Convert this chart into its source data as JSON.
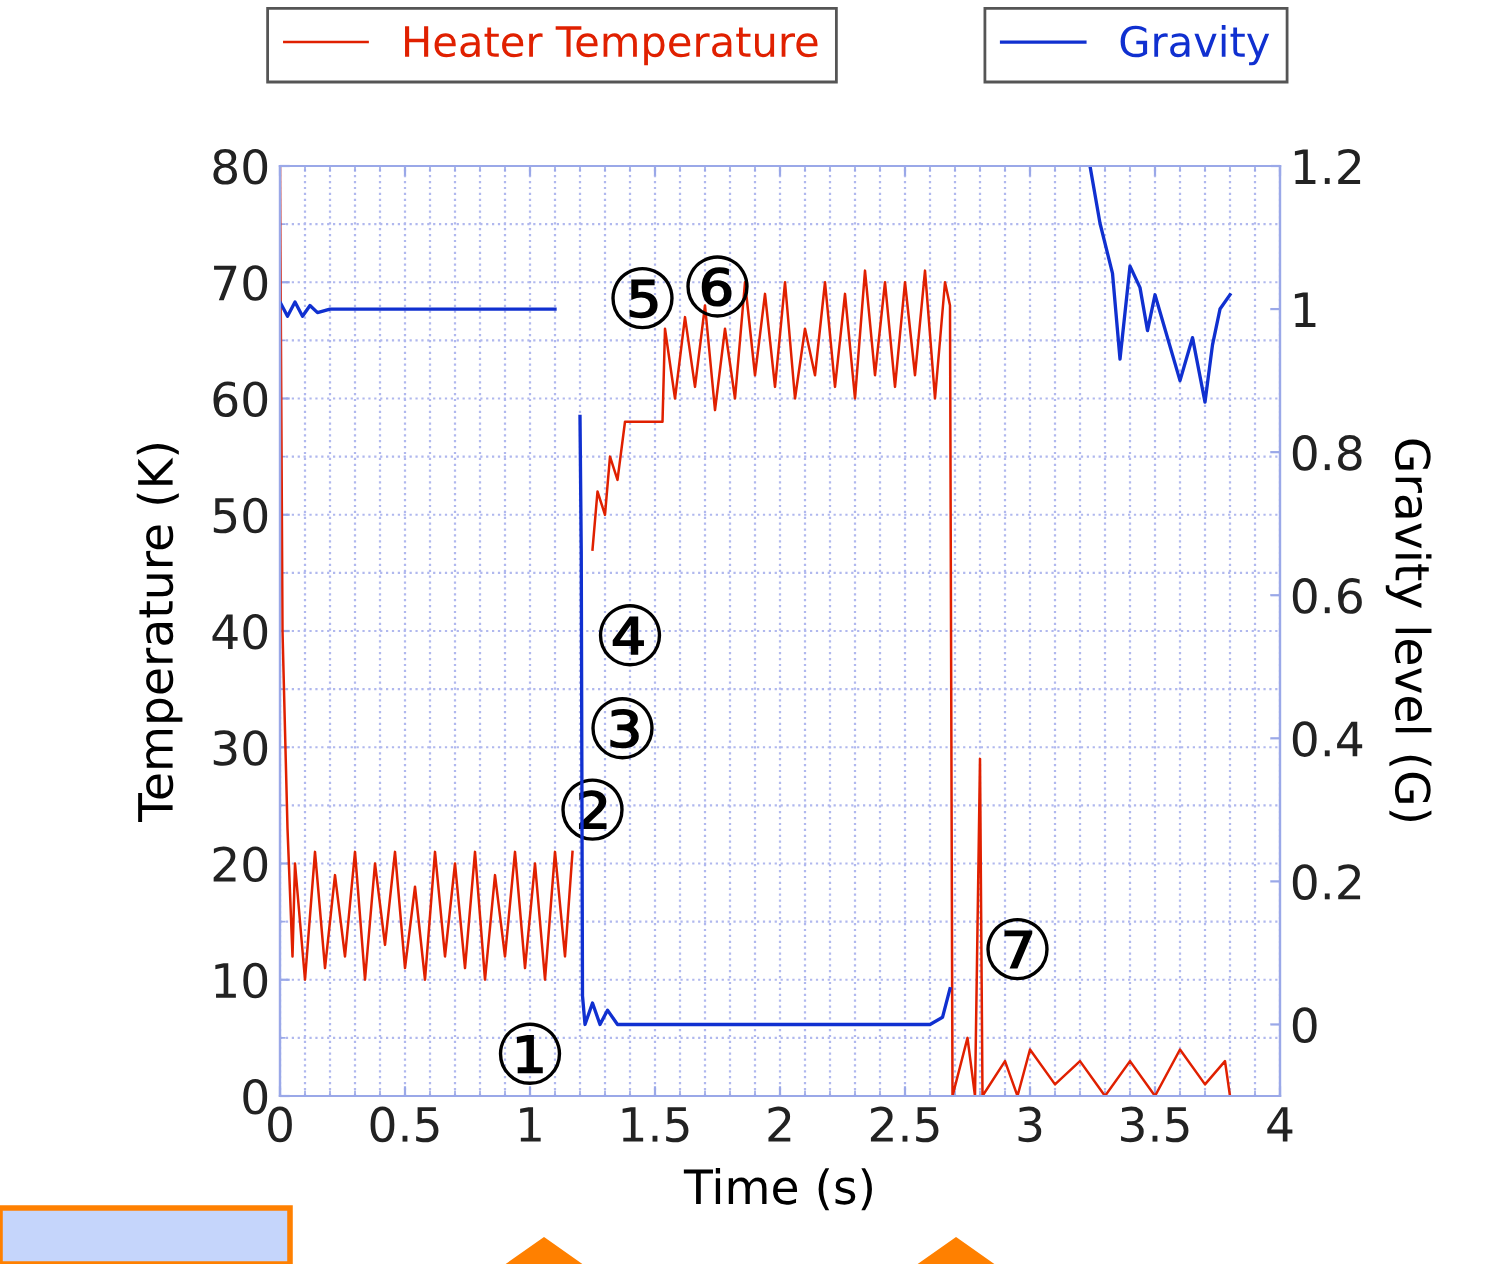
{
  "chart_data": {
    "type": "line",
    "xlabel": "Time (s)",
    "ylabel": "Temperature (K)",
    "y2label": "Gravity level (G)",
    "xlim": [
      0,
      4
    ],
    "xticks": [
      0,
      0.5,
      1,
      1.5,
      2,
      2.5,
      3,
      3.5,
      4
    ],
    "ylim": [
      0,
      80
    ],
    "yticks": [
      0,
      10,
      20,
      30,
      40,
      50,
      60,
      70,
      80
    ],
    "y2lim": [
      -0.1,
      1.2
    ],
    "y2ticks": [
      0,
      0.2,
      0.4,
      0.6,
      0.8,
      1,
      1.2
    ],
    "grid": true,
    "legend": "top",
    "marker": "none",
    "line_style": "solid",
    "series": [
      {
        "name": "Heater Temperature",
        "color": "#e02000",
        "x": [
          0,
          0.01,
          0.03,
          0.05,
          0.06,
          0.1,
          0.14,
          0.18,
          0.22,
          0.26,
          0.3,
          0.34,
          0.38,
          0.42,
          0.46,
          0.5,
          0.54,
          0.58,
          0.62,
          0.66,
          0.7,
          0.74,
          0.78,
          0.82,
          0.86,
          0.9,
          0.94,
          0.98,
          1.02,
          1.06,
          1.1,
          1.14,
          1.17,
          1.2,
          1.25,
          1.27,
          1.3,
          1.32,
          1.35,
          1.38,
          1.45,
          1.53,
          1.54,
          1.58,
          1.62,
          1.66,
          1.7,
          1.74,
          1.78,
          1.82,
          1.86,
          1.9,
          1.94,
          1.98,
          2.02,
          2.06,
          2.1,
          2.14,
          2.18,
          2.22,
          2.26,
          2.3,
          2.34,
          2.38,
          2.42,
          2.46,
          2.5,
          2.54,
          2.58,
          2.62,
          2.66,
          2.68,
          2.69,
          2.75,
          2.78,
          2.8,
          2.81,
          2.9,
          2.95,
          3.0,
          3.1,
          3.2,
          3.3,
          3.4,
          3.5,
          3.6,
          3.7,
          3.78,
          3.8
        ],
        "values": [
          80,
          40,
          23,
          12,
          20,
          10,
          21,
          11,
          19,
          12,
          21,
          10,
          20,
          13,
          21,
          11,
          18,
          10,
          21,
          12,
          20,
          11,
          21,
          10,
          19,
          12,
          21,
          11,
          20,
          10,
          21,
          12,
          21,
          null,
          47,
          52,
          50,
          55,
          53,
          58,
          58,
          58,
          66,
          60,
          67,
          61,
          68,
          59,
          66,
          60,
          70,
          62,
          69,
          61,
          70,
          60,
          66,
          62,
          70,
          61,
          69,
          60,
          71,
          62,
          70,
          61,
          70,
          62,
          71,
          60,
          70,
          68,
          0,
          5,
          0,
          29,
          0,
          3,
          0,
          4,
          1,
          3,
          0,
          3,
          0,
          4,
          1,
          3,
          0
        ]
      },
      {
        "name": "Gravity",
        "color": "#1030d0",
        "axis": "y2",
        "x": [
          0,
          0.03,
          0.06,
          0.09,
          0.12,
          0.15,
          0.2,
          0.3,
          0.5,
          1.1,
          1.15,
          1.2,
          1.205,
          1.21,
          1.22,
          1.25,
          1.28,
          1.31,
          1.35,
          1.45,
          2.6,
          2.65,
          2.68,
          2.7,
          3.24,
          3.28,
          3.33,
          3.36,
          3.4,
          3.44,
          3.47,
          3.5,
          3.55,
          3.6,
          3.65,
          3.7,
          3.73,
          3.76,
          3.8
        ],
        "values": [
          1.01,
          0.99,
          1.01,
          0.99,
          1.005,
          0.995,
          1.0,
          1.0,
          1.0,
          1.0,
          null,
          0.85,
          0.66,
          0.04,
          0.0,
          0.03,
          0.0,
          0.02,
          0.0,
          0.0,
          0.0,
          0.01,
          0.05,
          null,
          1.2,
          1.12,
          1.05,
          0.93,
          1.06,
          1.03,
          0.97,
          1.02,
          0.96,
          0.9,
          0.96,
          0.87,
          0.95,
          1.0,
          1.02
        ]
      }
    ],
    "annotations": [
      "①",
      "②",
      "③",
      "④",
      "⑤",
      "⑥",
      "⑦"
    ]
  }
}
